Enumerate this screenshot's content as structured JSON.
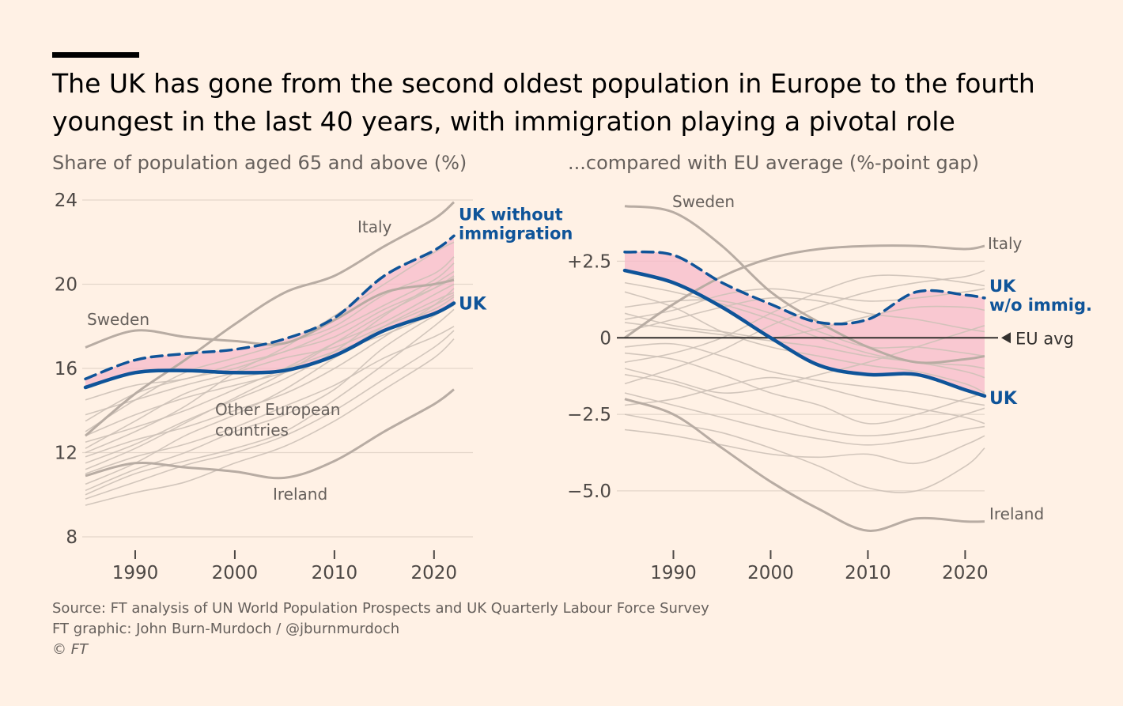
{
  "title": "The UK has gone from the second oldest population in Europe to the fourth youngest in the last 40 years, with immigration playing a pivotal role",
  "colors": {
    "background": "#fff1e5",
    "uk": "#0f5499",
    "band": "#f7b9c9",
    "others": "#cdc1b7",
    "highlight": "#b8aca3",
    "axis": "#33302e",
    "grid": "#e3d6ca"
  },
  "footer": {
    "source": "Source: FT analysis of UN World Population Prospects and UK Quarterly Labour Force Survey",
    "graphic": "FT graphic: John Burn-Murdoch / @jburnmurdoch",
    "copyright": "© FT"
  },
  "chart_data": [
    {
      "type": "line",
      "title": "Share of population aged 65 and above (%)",
      "xlabel": "",
      "ylabel": "",
      "xlim": [
        1985,
        2022
      ],
      "ylim": [
        8,
        24
      ],
      "x_ticks": [
        1990,
        2000,
        2010,
        2020
      ],
      "x_tick_labels": [
        "1990",
        "2000",
        "2010",
        "2020"
      ],
      "y_ticks": [
        8,
        12,
        16,
        20,
        24
      ],
      "y_tick_labels": [
        "8",
        "12",
        "16",
        "20",
        "24"
      ],
      "x": [
        1985,
        1990,
        1995,
        2000,
        2005,
        2010,
        2015,
        2020,
        2022
      ],
      "series": [
        {
          "name": "UK",
          "label": "UK",
          "role": "uk",
          "values": [
            15.1,
            15.8,
            15.9,
            15.8,
            15.9,
            16.6,
            17.8,
            18.6,
            19.1
          ]
        },
        {
          "name": "UK without immigration",
          "label": "UK without immigration",
          "role": "uk-counterfactual",
          "values": [
            15.5,
            16.4,
            16.7,
            16.9,
            17.4,
            18.4,
            20.4,
            21.6,
            22.3
          ]
        },
        {
          "name": "Italy",
          "label": "Italy",
          "role": "highlight",
          "values": [
            12.8,
            14.8,
            16.4,
            18.1,
            19.6,
            20.4,
            21.8,
            23.1,
            23.9
          ]
        },
        {
          "name": "Sweden",
          "label": "Sweden",
          "role": "highlight",
          "values": [
            17.0,
            17.8,
            17.5,
            17.3,
            17.2,
            18.3,
            19.6,
            20.0,
            20.2
          ]
        },
        {
          "name": "Ireland",
          "label": "Ireland",
          "role": "highlight",
          "values": [
            10.9,
            11.5,
            11.3,
            11.1,
            10.8,
            11.6,
            13.0,
            14.3,
            15.0
          ]
        },
        {
          "name": "Other 1",
          "role": "other",
          "values": [
            13.0,
            14.5,
            15.8,
            16.5,
            17.2,
            18.0,
            19.5,
            20.5,
            21.3
          ]
        },
        {
          "name": "Other 2",
          "role": "other",
          "values": [
            12.0,
            13.0,
            14.2,
            15.8,
            17.0,
            18.5,
            20.0,
            21.5,
            22.0
          ]
        },
        {
          "name": "Other 3",
          "role": "other",
          "values": [
            13.5,
            14.8,
            15.5,
            16.0,
            16.8,
            17.5,
            18.8,
            19.8,
            20.3
          ]
        },
        {
          "name": "Other 4",
          "role": "other",
          "values": [
            11.5,
            12.4,
            13.5,
            14.5,
            15.5,
            16.8,
            18.5,
            20.0,
            20.6
          ]
        },
        {
          "name": "Other 5",
          "role": "other",
          "values": [
            14.5,
            15.2,
            15.5,
            16.2,
            16.8,
            17.8,
            19.0,
            20.2,
            21.0
          ]
        },
        {
          "name": "Other 6",
          "role": "other",
          "values": [
            12.5,
            13.2,
            14.0,
            15.0,
            16.0,
            17.2,
            18.2,
            19.5,
            20.0
          ]
        },
        {
          "name": "Other 7",
          "role": "other",
          "values": [
            10.2,
            11.2,
            12.0,
            13.0,
            13.8,
            15.0,
            17.0,
            18.5,
            19.0
          ]
        },
        {
          "name": "Other 8",
          "role": "other",
          "values": [
            11.0,
            11.8,
            12.4,
            13.2,
            14.2,
            15.2,
            16.5,
            17.5,
            18.0
          ]
        },
        {
          "name": "Other 9",
          "role": "other",
          "values": [
            9.5,
            10.1,
            10.6,
            11.5,
            12.3,
            13.5,
            15.0,
            16.5,
            17.4
          ]
        },
        {
          "name": "Other 10",
          "role": "other",
          "values": [
            9.8,
            10.6,
            11.4,
            12.0,
            12.8,
            14.0,
            15.5,
            17.0,
            17.8
          ]
        },
        {
          "name": "Other 11",
          "role": "other",
          "values": [
            10.5,
            11.5,
            12.8,
            13.8,
            15.0,
            16.5,
            18.0,
            19.2,
            19.6
          ]
        },
        {
          "name": "Other 12",
          "role": "other",
          "values": [
            12.2,
            13.5,
            14.8,
            15.5,
            16.0,
            16.8,
            17.6,
            18.6,
            19.2
          ]
        },
        {
          "name": "Other 13",
          "role": "other",
          "values": [
            11.8,
            12.6,
            13.2,
            14.0,
            14.8,
            16.0,
            17.5,
            19.0,
            19.8
          ]
        },
        {
          "name": "Other 14",
          "role": "other",
          "values": [
            13.8,
            14.5,
            15.2,
            15.8,
            16.5,
            17.0,
            18.0,
            19.0,
            19.5
          ]
        },
        {
          "name": "Other 15",
          "role": "other",
          "values": [
            10.0,
            11.0,
            11.6,
            12.2,
            13.0,
            14.5,
            16.2,
            18.0,
            18.8
          ]
        },
        {
          "name": "Other 16",
          "role": "other",
          "values": [
            12.8,
            13.8,
            14.6,
            15.2,
            15.8,
            16.6,
            17.8,
            18.8,
            19.4
          ]
        },
        {
          "name": "Other 17",
          "role": "other",
          "values": [
            11.2,
            12.2,
            13.4,
            14.6,
            15.8,
            17.2,
            18.6,
            19.8,
            20.4
          ]
        }
      ],
      "annotations": [
        {
          "text": "Other European countries",
          "lines": [
            "Other European",
            "countries"
          ]
        }
      ]
    },
    {
      "type": "line",
      "title": "...compared with EU average (%-point gap)",
      "xlabel": "",
      "ylabel": "",
      "xlim": [
        1985,
        2022
      ],
      "ylim": [
        -6.5,
        4.5
      ],
      "x_ticks": [
        1990,
        2000,
        2010,
        2020
      ],
      "x_tick_labels": [
        "1990",
        "2000",
        "2010",
        "2020"
      ],
      "y_ticks": [
        2.5,
        0,
        -2.5,
        -5.0
      ],
      "y_tick_labels": [
        "+2.5",
        "0",
        "−2.5",
        "−5.0"
      ],
      "reference_line": {
        "value": 0,
        "label": "EU avg"
      },
      "x": [
        1985,
        1990,
        1995,
        2000,
        2005,
        2010,
        2015,
        2020,
        2022
      ],
      "series": [
        {
          "name": "UK",
          "label": "UK",
          "role": "uk",
          "values": [
            2.2,
            1.8,
            1.0,
            0.0,
            -0.9,
            -1.2,
            -1.2,
            -1.7,
            -1.9
          ]
        },
        {
          "name": "UK w/o immig.",
          "label": "UK w/o immig.",
          "role": "uk-counterfactual",
          "values": [
            2.8,
            2.7,
            1.8,
            1.1,
            0.5,
            0.6,
            1.5,
            1.4,
            1.3
          ]
        },
        {
          "name": "Sweden",
          "label": "Sweden",
          "role": "highlight",
          "values": [
            4.3,
            4.1,
            3.0,
            1.5,
            0.5,
            -0.3,
            -0.8,
            -0.7,
            -0.6
          ]
        },
        {
          "name": "Italy",
          "label": "Italy",
          "role": "highlight",
          "values": [
            0.0,
            1.1,
            2.0,
            2.6,
            2.9,
            3.0,
            3.0,
            2.9,
            3.0
          ]
        },
        {
          "name": "Ireland",
          "label": "Ireland",
          "role": "highlight",
          "values": [
            -2.0,
            -2.5,
            -3.6,
            -4.7,
            -5.6,
            -6.3,
            -5.9,
            -6.0,
            -6.0
          ]
        },
        {
          "name": "Other 1",
          "role": "other",
          "values": [
            1.5,
            1.0,
            0.2,
            -0.3,
            -0.6,
            -0.9,
            -1.1,
            -1.5,
            -1.8
          ]
        },
        {
          "name": "Other 2",
          "role": "other",
          "values": [
            0.5,
            0.3,
            0.1,
            -0.1,
            -0.3,
            -0.6,
            -0.8,
            -1.1,
            -1.3
          ]
        },
        {
          "name": "Other 3",
          "role": "other",
          "values": [
            -0.8,
            -0.5,
            0.0,
            0.8,
            1.5,
            2.0,
            2.0,
            1.8,
            1.7
          ]
        },
        {
          "name": "Other 4",
          "role": "other",
          "values": [
            -1.5,
            -1.0,
            -0.4,
            0.4,
            1.0,
            1.5,
            1.8,
            2.0,
            2.2
          ]
        },
        {
          "name": "Other 5",
          "role": "other",
          "values": [
            1.0,
            1.2,
            1.2,
            0.8,
            0.2,
            -0.3,
            -0.3,
            -0.5,
            -0.6
          ]
        },
        {
          "name": "Other 6",
          "role": "other",
          "values": [
            0.2,
            0.6,
            1.0,
            1.3,
            1.2,
            0.8,
            0.6,
            0.3,
            0.2
          ]
        },
        {
          "name": "Other 7",
          "role": "other",
          "values": [
            -0.5,
            -0.7,
            -1.2,
            -1.8,
            -2.2,
            -2.8,
            -2.5,
            -2.0,
            -1.8
          ]
        },
        {
          "name": "Other 8",
          "role": "other",
          "values": [
            -1.2,
            -1.5,
            -2.0,
            -2.5,
            -3.0,
            -3.2,
            -3.0,
            -2.5,
            -2.3
          ]
        },
        {
          "name": "Other 9",
          "role": "other",
          "values": [
            -2.5,
            -2.8,
            -3.1,
            -3.6,
            -4.2,
            -4.9,
            -5.0,
            -4.2,
            -3.6
          ]
        },
        {
          "name": "Other 10",
          "role": "other",
          "values": [
            -3.0,
            -3.2,
            -3.5,
            -3.8,
            -3.9,
            -3.8,
            -4.1,
            -3.5,
            -3.2
          ]
        },
        {
          "name": "Other 11",
          "role": "other",
          "values": [
            -1.0,
            -1.4,
            -1.8,
            -1.6,
            -1.2,
            -0.8,
            -0.3,
            0.2,
            0.4
          ]
        },
        {
          "name": "Other 12",
          "role": "other",
          "values": [
            0.8,
            0.4,
            0.2,
            0.0,
            0.3,
            0.7,
            1.0,
            1.0,
            0.9
          ]
        },
        {
          "name": "Other 13",
          "role": "other",
          "values": [
            -0.3,
            -0.2,
            -0.6,
            -1.1,
            -1.4,
            -1.6,
            -1.8,
            -2.1,
            -2.2
          ]
        },
        {
          "name": "Other 14",
          "role": "other",
          "values": [
            1.8,
            1.5,
            1.1,
            0.6,
            0.0,
            -0.5,
            -0.8,
            -0.9,
            -1.0
          ]
        },
        {
          "name": "Other 15",
          "role": "other",
          "values": [
            -2.2,
            -2.0,
            -1.6,
            -1.3,
            -1.6,
            -2.0,
            -2.3,
            -2.6,
            -2.8
          ]
        },
        {
          "name": "Other 16",
          "role": "other",
          "values": [
            -1.8,
            -2.2,
            -2.6,
            -3.0,
            -3.3,
            -3.5,
            -3.3,
            -3.0,
            -2.9
          ]
        },
        {
          "name": "Other 17",
          "role": "other",
          "values": [
            0.6,
            0.9,
            1.4,
            1.6,
            1.4,
            1.2,
            1.3,
            1.5,
            1.6
          ]
        }
      ],
      "annotations": []
    }
  ]
}
